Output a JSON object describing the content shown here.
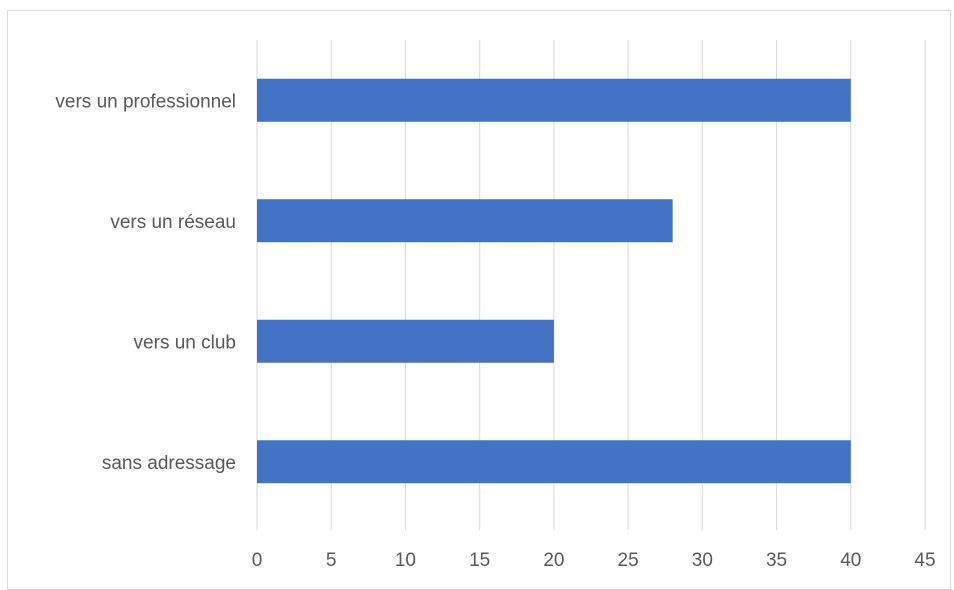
{
  "chart_data": {
    "type": "bar",
    "orientation": "horizontal",
    "categories": [
      "vers un professionnel",
      "vers un réseau",
      "vers un club",
      "sans adressage"
    ],
    "values": [
      40,
      28,
      20,
      40
    ],
    "xlim": [
      0,
      45
    ],
    "xticks": [
      "0",
      "5",
      "10",
      "15",
      "20",
      "25",
      "30",
      "35",
      "40",
      "45"
    ],
    "title": "",
    "xlabel": "",
    "ylabel": "",
    "grid": "vertical",
    "legend": "none",
    "bar_color": "#4472C4",
    "grid_color": "#d9d9d9",
    "text_color": "#595959"
  }
}
